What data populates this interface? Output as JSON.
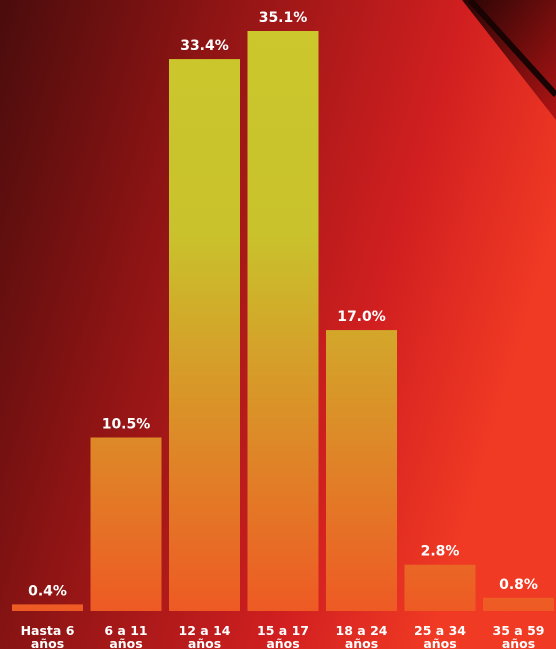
{
  "chart_data": {
    "type": "bar",
    "categories": [
      [
        "Hasta 6",
        "años"
      ],
      [
        "6 a 11",
        "años"
      ],
      [
        "12 a 14",
        "años"
      ],
      [
        "15 a 17",
        "años"
      ],
      [
        "18 a 24",
        "años"
      ],
      [
        "25 a 34",
        "años"
      ],
      [
        "35 a 59",
        "años"
      ]
    ],
    "values": [
      0.4,
      10.5,
      33.4,
      35.1,
      17.0,
      2.8,
      0.8
    ],
    "value_labels": [
      "0.4%",
      "10.5%",
      "33.4%",
      "35.1%",
      "17.0%",
      "2.8%",
      "0.8%"
    ],
    "unit": "%",
    "ylim": [
      0,
      35.1
    ],
    "grid": false,
    "legend": "none",
    "colors": {
      "bar_top": "#cbc72c",
      "bar_bottom": "#ee5a24",
      "background_dark": "#5a0d0d",
      "background_bright": "#e8282a",
      "text": "#ffffff"
    }
  }
}
